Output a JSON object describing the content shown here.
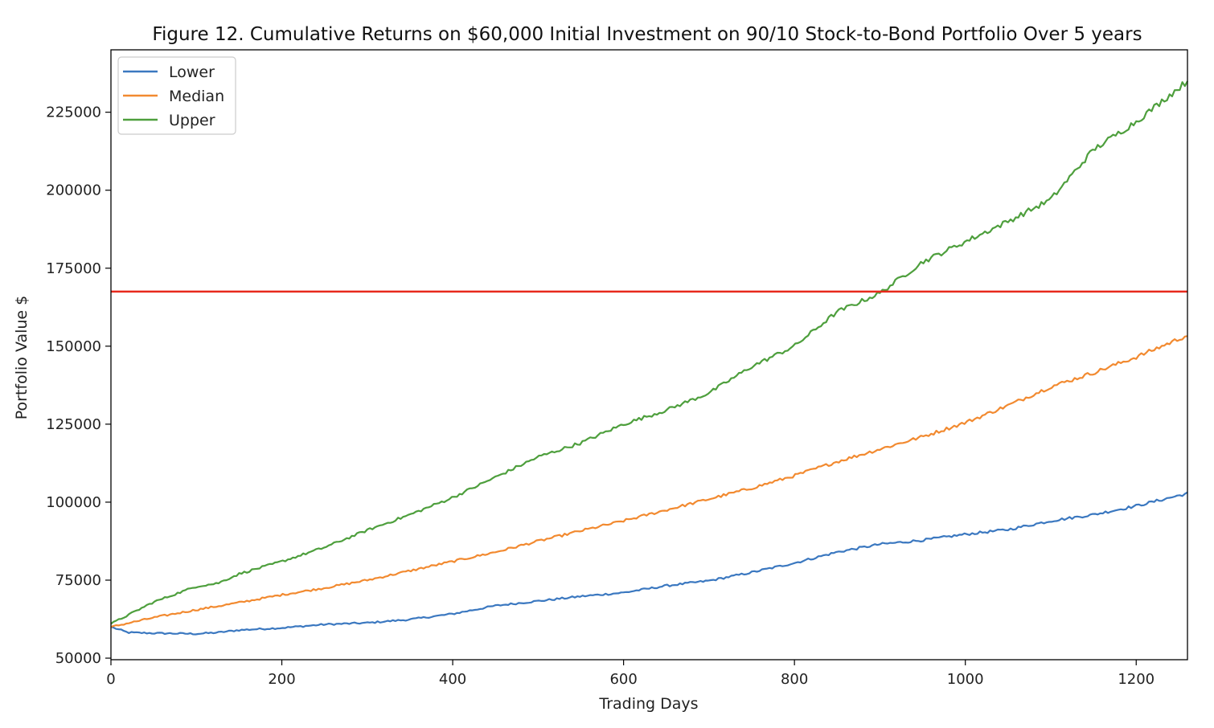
{
  "chart_data": {
    "type": "line",
    "title": "Figure 12. Cumulative Returns on $60,000 Initial Investment on 90/10 Stock-to-Bond Portfolio Over 5 years",
    "xlabel": "Trading Days",
    "ylabel": "Portfolio Value $",
    "xlim": [
      0,
      1260
    ],
    "ylim": [
      49500,
      245000
    ],
    "xticks": [
      "0",
      "200",
      "400",
      "600",
      "800",
      "1000",
      "1200"
    ],
    "yticks": [
      "50000",
      "75000",
      "100000",
      "125000",
      "150000",
      "175000",
      "200000",
      "225000"
    ],
    "grid": false,
    "legend_position": "upper-left",
    "reference_line": {
      "y": 167500,
      "color": "#e8291c"
    },
    "series": [
      {
        "name": "Lower",
        "color": "#3b78c0",
        "x": [
          0,
          20,
          50,
          100,
          125,
          150,
          200,
          250,
          300,
          350,
          400,
          450,
          500,
          550,
          600,
          650,
          700,
          750,
          800,
          850,
          900,
          950,
          1000,
          1050,
          1100,
          1150,
          1200,
          1260
        ],
        "y": [
          60000,
          58200,
          58000,
          57800,
          58200,
          59000,
          59700,
          60800,
          61300,
          62400,
          64200,
          66800,
          68300,
          69800,
          71000,
          73200,
          74800,
          77500,
          80500,
          84000,
          86500,
          87800,
          89700,
          91200,
          94000,
          96000,
          98800,
          102800
        ]
      },
      {
        "name": "Median",
        "color": "#f28a30",
        "x": [
          0,
          50,
          100,
          150,
          200,
          250,
          300,
          350,
          400,
          450,
          500,
          550,
          600,
          650,
          700,
          750,
          800,
          850,
          900,
          950,
          1000,
          1050,
          1100,
          1150,
          1200,
          1260
        ],
        "y": [
          60000,
          63000,
          65500,
          67800,
          70300,
          72500,
          75000,
          78000,
          81000,
          84000,
          87500,
          90800,
          94000,
          97500,
          101000,
          104500,
          108500,
          113000,
          117000,
          121000,
          125500,
          131000,
          137000,
          141500,
          146500,
          153500
        ]
      },
      {
        "name": "Upper",
        "color": "#4e9f3d",
        "x": [
          0,
          50,
          100,
          125,
          150,
          200,
          250,
          300,
          350,
          400,
          450,
          500,
          550,
          600,
          650,
          700,
          750,
          800,
          850,
          900,
          950,
          1000,
          1050,
          1100,
          1150,
          1200,
          1260
        ],
        "y": [
          61000,
          68000,
          73000,
          74000,
          77000,
          81000,
          85500,
          91000,
          96000,
          101500,
          108000,
          114500,
          119000,
          125000,
          129500,
          135000,
          143500,
          150000,
          161000,
          167000,
          177000,
          183500,
          190000,
          197000,
          213000,
          222000,
          235000
        ]
      }
    ]
  }
}
